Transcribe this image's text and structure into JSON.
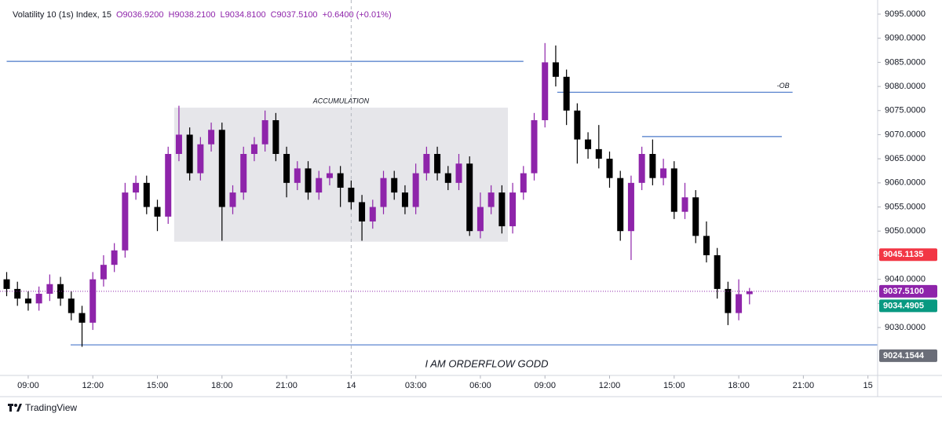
{
  "chart_data": {
    "type": "candlestick",
    "header": {
      "symbol": "Volatility 10 (1s) Index, 15",
      "open": "O9036.9200",
      "high": "H9038.2100",
      "low": "L9034.8100",
      "close": "C9037.5100",
      "change": "+0.6400 (+0.01%)"
    },
    "up_color": "#8e24aa",
    "down_color": "#000000",
    "x": [
      8,
      8.5,
      9,
      9.5,
      10,
      10.5,
      11,
      11.5,
      12,
      12.5,
      13,
      13.5,
      14,
      14.5,
      15,
      15.5,
      16,
      16.5,
      17,
      17.5,
      18,
      18.5,
      19,
      19.5,
      20,
      20.5,
      21,
      21.5,
      22,
      22.5,
      23,
      23.5,
      24,
      24.5,
      25,
      25.5,
      26,
      26.5,
      27,
      27.5,
      28,
      28.5,
      29,
      29.5,
      30,
      30.5,
      31,
      31.5,
      32,
      32.5,
      33,
      33.5,
      34,
      34.5,
      35,
      35.5,
      36,
      36.5,
      37,
      37.5,
      38,
      38.5,
      39,
      39.5,
      40,
      40.5,
      41,
      41.5,
      42,
      42.5
    ],
    "open": [
      9040,
      9038,
      9036,
      9035,
      9037,
      9039,
      9036,
      9033,
      9031,
      9040,
      9043,
      9046,
      9058,
      9060,
      9055,
      9053,
      9066,
      9070,
      9062,
      9068,
      9071,
      9055,
      9058,
      9066,
      9068,
      9073,
      9066,
      9060,
      9063,
      9058,
      9061,
      9062,
      9059,
      9056,
      9052,
      9055,
      9061,
      9058,
      9055,
      9062,
      9066,
      9062,
      9060,
      9064,
      9050,
      9055,
      9058,
      9051,
      9058,
      9062,
      9073,
      9085,
      9082,
      9075,
      9069,
      9067,
      9065,
      9061,
      9050,
      9060,
      9066,
      9061,
      9063,
      9054,
      9057,
      9049,
      9045,
      9038,
      9033,
      9036.92
    ],
    "high": [
      9041.5,
      9039.5,
      9037.5,
      9038.5,
      9041,
      9040.5,
      9037.5,
      9034.5,
      9041.5,
      9045,
      9047.5,
      9060,
      9061.5,
      9061.5,
      9056.5,
      9067.5,
      9076,
      9071.5,
      9069.5,
      9072.5,
      9072.5,
      9059.5,
      9067.5,
      9069.5,
      9075,
      9074.5,
      9067.5,
      9064.5,
      9064.5,
      9062.5,
      9063.5,
      9063.5,
      9060.5,
      9057.5,
      9056.5,
      9062.5,
      9062.5,
      9059.5,
      9064,
      9067.5,
      9067.5,
      9063.5,
      9066,
      9065.5,
      9058,
      9059.5,
      9059.5,
      9060,
      9063.5,
      9074.5,
      9089,
      9088.5,
      9083.5,
      9076.5,
      9070.5,
      9072,
      9066.5,
      9062.5,
      9061.5,
      9067.5,
      9069,
      9065,
      9064.5,
      9060,
      9058.5,
      9052,
      9046.5,
      9039.5,
      9040,
      9038.21
    ],
    "low": [
      9036.5,
      9034.5,
      9033.5,
      9033.5,
      9035.5,
      9034.5,
      9031.5,
      9026,
      9029.5,
      9038.5,
      9041.5,
      9044.5,
      9056.5,
      9053.5,
      9050,
      9051.5,
      9064.5,
      9060.5,
      9060.5,
      9066.5,
      9048,
      9053.5,
      9056.5,
      9064.5,
      9066.5,
      9064.5,
      9057,
      9058.5,
      9056.5,
      9056.5,
      9059.5,
      9055,
      9054.5,
      9048,
      9050.5,
      9053.5,
      9056.5,
      9053.5,
      9053.5,
      9060.5,
      9060.5,
      9058.5,
      9058.5,
      9049,
      9048.5,
      9053.5,
      9049.5,
      9049.5,
      9056.5,
      9060.5,
      9071.5,
      9080,
      9072,
      9064,
      9065,
      9063,
      9059,
      9048,
      9044,
      9058.5,
      9059.5,
      9059.5,
      9052.5,
      9052.5,
      9047.5,
      9043.5,
      9036,
      9030.5,
      9031.5,
      9034.81
    ],
    "close": [
      9038,
      9036,
      9035,
      9037,
      9039,
      9036,
      9033,
      9031,
      9040,
      9043,
      9046,
      9058,
      9060,
      9055,
      9053,
      9066,
      9070,
      9062,
      9068,
      9071,
      9055,
      9058,
      9066,
      9068,
      9073,
      9066,
      9060,
      9063,
      9058,
      9061,
      9062,
      9059,
      9056,
      9052,
      9055,
      9061,
      9058,
      9055,
      9062,
      9066,
      9062,
      9060,
      9064,
      9050,
      9055,
      9058,
      9051,
      9058,
      9062,
      9073,
      9085,
      9082,
      9075,
      9069,
      9067,
      9065,
      9061,
      9050,
      9060,
      9066,
      9061,
      9063,
      9054,
      9057,
      9049,
      9045,
      9038,
      9033,
      9036.92,
      9037.51
    ],
    "xlim": [
      7.69,
      48.45
    ],
    "xticks": [
      {
        "value": 9,
        "label": "09:00"
      },
      {
        "value": 12,
        "label": "12:00"
      },
      {
        "value": 15,
        "label": "15:00"
      },
      {
        "value": 18,
        "label": "18:00"
      },
      {
        "value": 21,
        "label": "21:00"
      },
      {
        "value": 24,
        "label": "14"
      },
      {
        "value": 27,
        "label": "03:00"
      },
      {
        "value": 30,
        "label": "06:00"
      },
      {
        "value": 33,
        "label": "09:00"
      },
      {
        "value": 36,
        "label": "12:00"
      },
      {
        "value": 39,
        "label": "15:00"
      },
      {
        "value": 42,
        "label": "18:00"
      },
      {
        "value": 45,
        "label": "21:00"
      },
      {
        "value": 48,
        "label": "15"
      }
    ],
    "ylim": [
      9020.06,
      9097.93
    ],
    "yticks": [
      {
        "value": 9030,
        "label": "9030.0000"
      },
      {
        "value": 9035,
        "label": "9035.0000"
      },
      {
        "value": 9040,
        "label": "9040.0000"
      },
      {
        "value": 9045,
        "label": "9045.0000"
      },
      {
        "value": 9050,
        "label": "9050.0000"
      },
      {
        "value": 9055,
        "label": "9055.0000"
      },
      {
        "value": 9060,
        "label": "9060.0000"
      },
      {
        "value": 9065,
        "label": "9065.0000"
      },
      {
        "value": 9070,
        "label": "9070.0000"
      },
      {
        "value": 9075,
        "label": "9075.0000"
      },
      {
        "value": 9080,
        "label": "9080.0000"
      },
      {
        "value": 9085,
        "label": "9085.0000"
      },
      {
        "value": 9090,
        "label": "9090.0000"
      },
      {
        "value": 9095,
        "label": "9095.0000"
      }
    ],
    "session_break": 24,
    "last_price_line": 9037.51,
    "last_price_color": "#8e24aa",
    "level_color": "#4a78c9",
    "levels": [
      {
        "value": 9085.2,
        "from": 8.0,
        "to": 32.0
      },
      {
        "value": 9078.8,
        "from": 33.57,
        "to": 44.5,
        "label": "-OB"
      },
      {
        "value": 9069.6,
        "from": 37.51,
        "to": 44.0
      },
      {
        "value": 9026.4,
        "from": 10.97,
        "to": 48.45
      }
    ],
    "zone": {
      "label": "ACCUMULATION",
      "from": 15.78,
      "to": 31.28,
      "low": 9047.8,
      "high": 9075.6,
      "color": "#e6e6ea"
    },
    "price_tags": [
      {
        "value": 9045.1135,
        "label": "9045.1135",
        "color": "#f23645"
      },
      {
        "value": 9037.51,
        "label": "9037.5100",
        "color": "#8e24aa"
      },
      {
        "value": 9034.4905,
        "label": "9034.4905",
        "color": "#089981"
      },
      {
        "value": 9024.1544,
        "label": "9024.1544",
        "color": "#6a6d78"
      }
    ],
    "caption": "I AM ORDERFLOW GODD",
    "brand": "TradingView"
  }
}
